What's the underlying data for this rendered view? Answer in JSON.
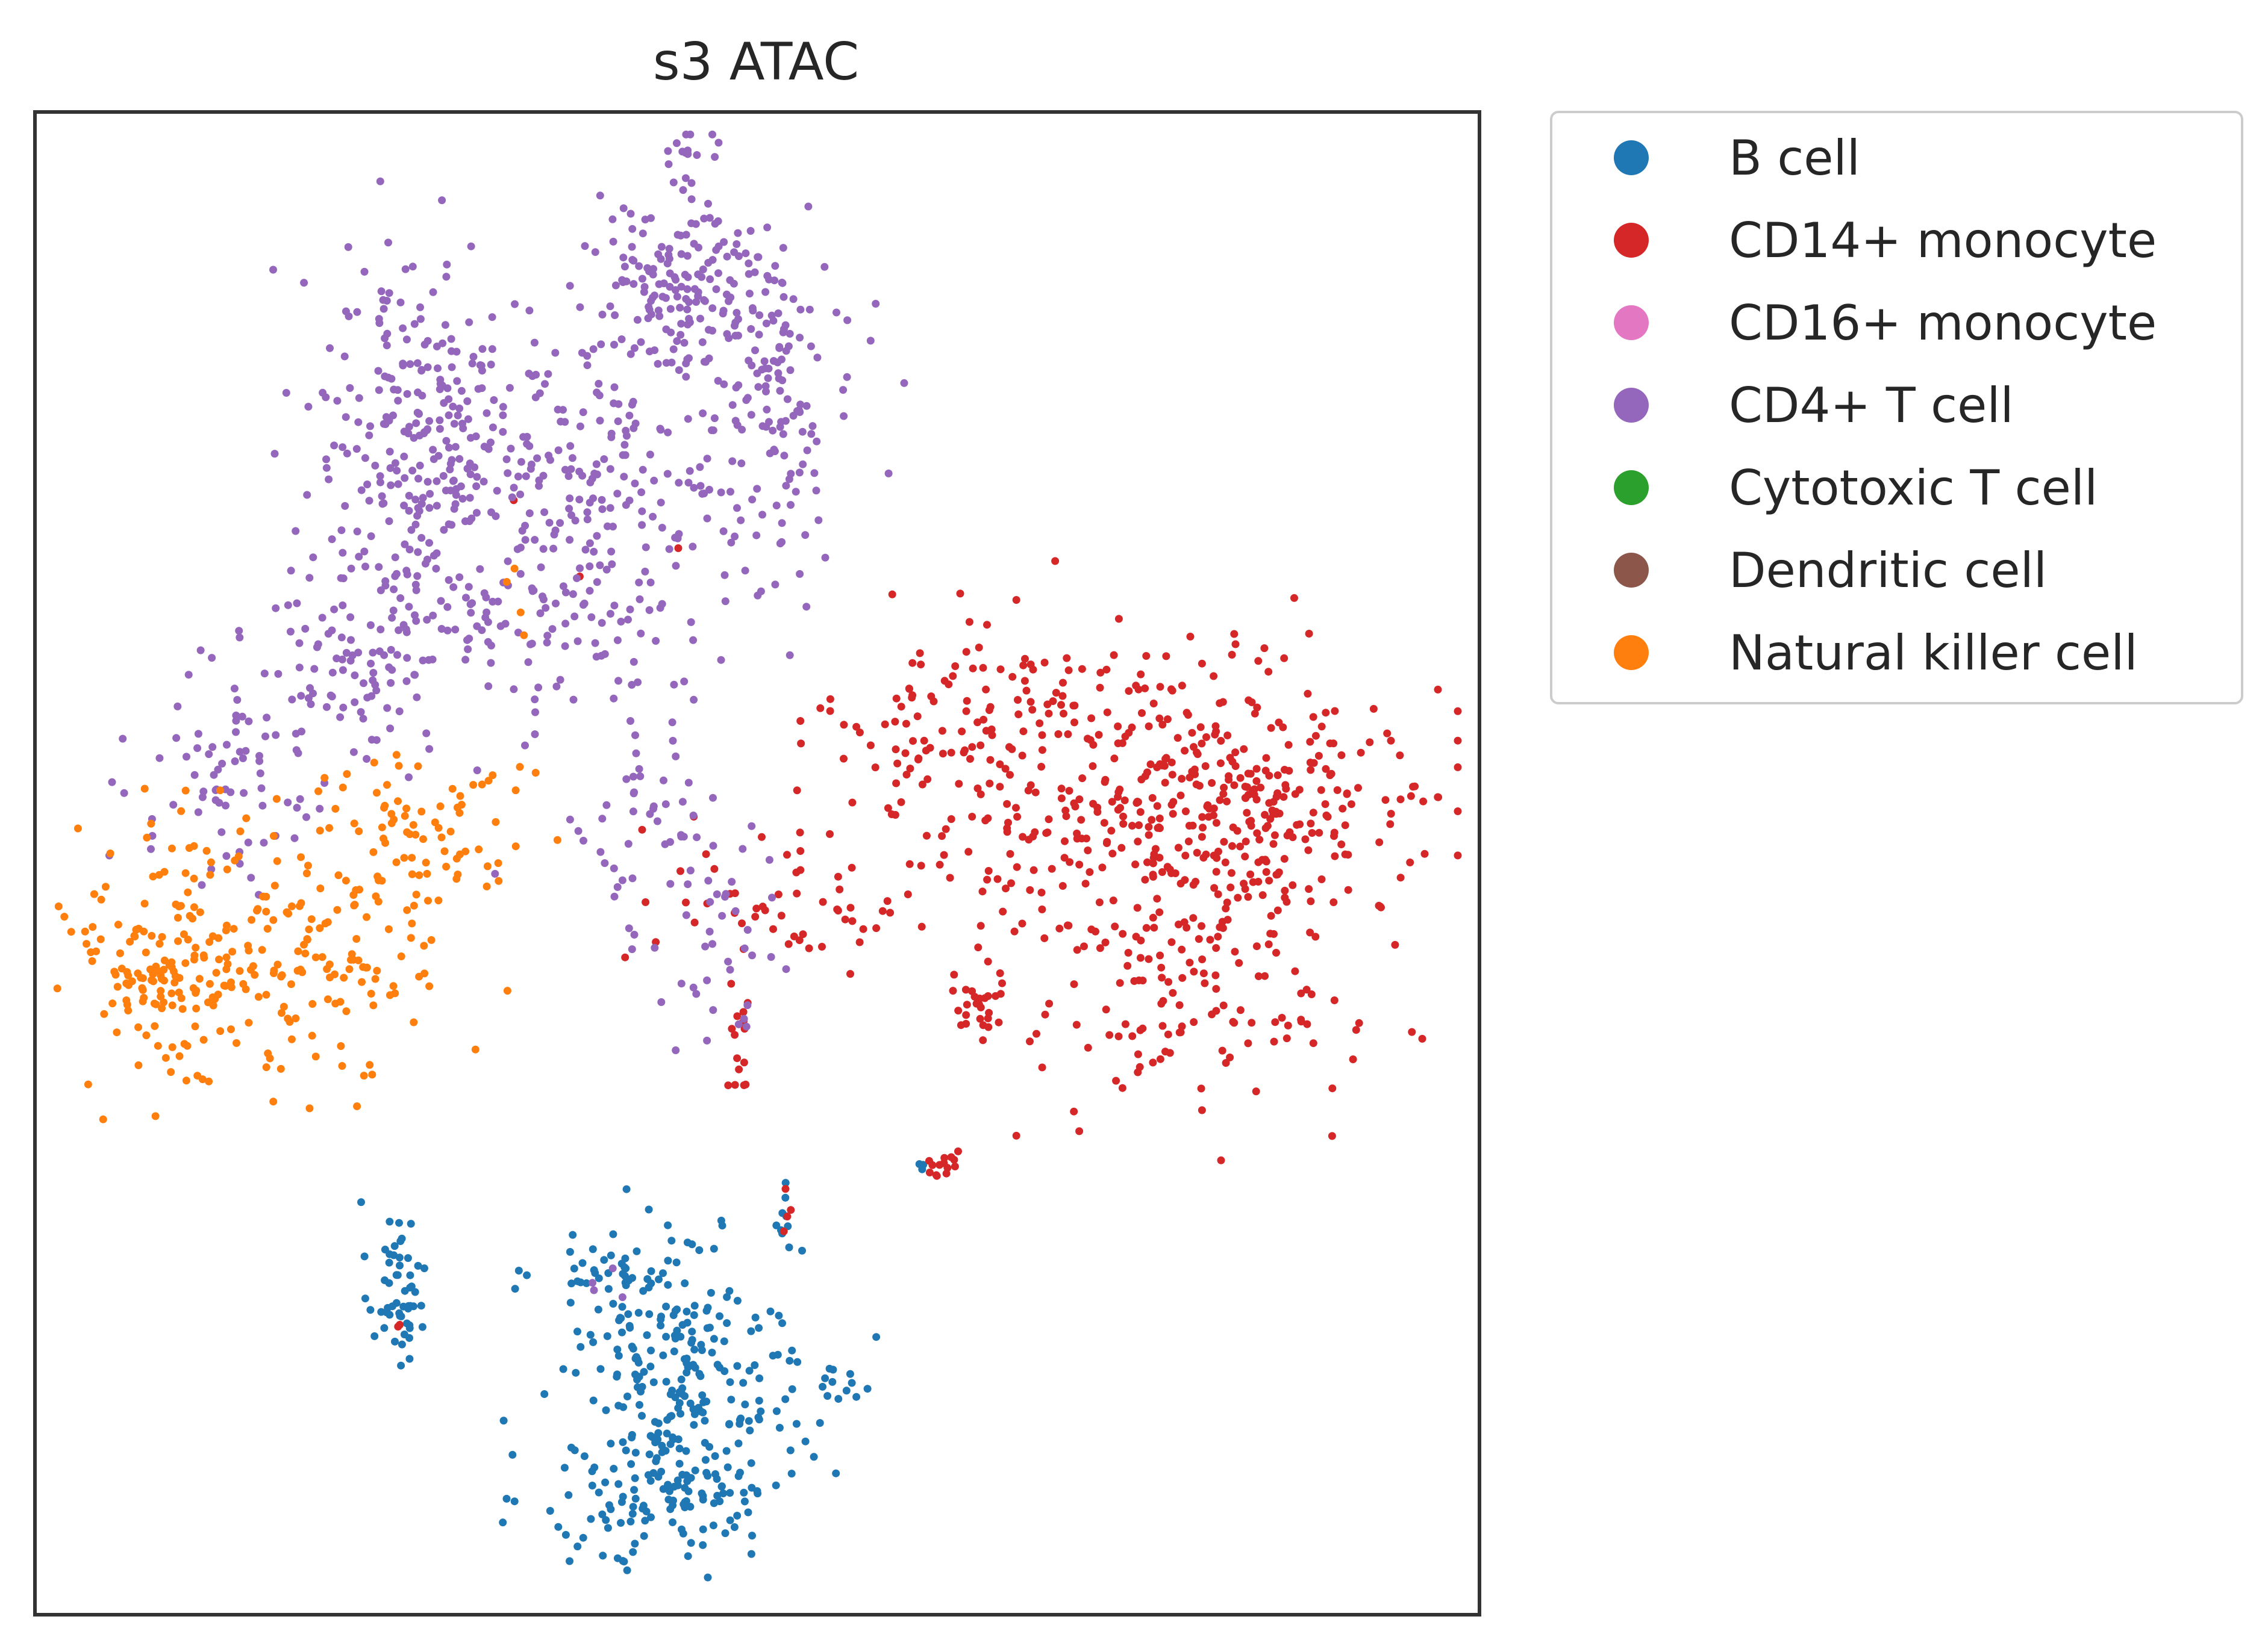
{
  "chart_data": {
    "type": "scatter",
    "title": "s3 ATAC",
    "xlabel": "",
    "ylabel": "",
    "xlim": [
      0,
      100
    ],
    "ylim": [
      0,
      100
    ],
    "grid": false,
    "axis_ticks": false,
    "legend_position": "outside-right-top",
    "series": [
      {
        "name": "B cell",
        "color": "#1f77b4",
        "clusters": [
          {
            "center": [
              25,
              22
            ],
            "spread": [
              1.0,
              2.8
            ],
            "n": 55
          },
          {
            "center": [
              41,
              22
            ],
            "spread": [
              3.2,
              2.5
            ],
            "n": 75
          },
          {
            "center": [
              46,
              16
            ],
            "spread": [
              3.8,
              3.2
            ],
            "n": 145
          },
          {
            "center": [
              44,
              8.5
            ],
            "spread": [
              4.5,
              2.8
            ],
            "n": 150
          },
          {
            "center": [
              55,
              15
            ],
            "spread": [
              1.5,
              1.0
            ],
            "n": 15
          },
          {
            "center": [
              52,
              26
            ],
            "spread": [
              1.0,
              1.5
            ],
            "n": 10
          },
          {
            "center": [
              61.5,
              30
            ],
            "spread": [
              0.3,
              0.2
            ],
            "n": 3
          }
        ]
      },
      {
        "name": "CD14+ monocyte",
        "color": "#d62728",
        "clusters": [
          {
            "center": [
              76,
              55
            ],
            "spread": [
              8.0,
              5.0
            ],
            "n": 330
          },
          {
            "center": [
              86,
              54
            ],
            "spread": [
              6.0,
              4.0
            ],
            "n": 160
          },
          {
            "center": [
              80,
              41
            ],
            "spread": [
              5.5,
              4.0
            ],
            "n": 130
          },
          {
            "center": [
              63,
              59
            ],
            "spread": [
              4.5,
              4.0
            ],
            "n": 70
          },
          {
            "center": [
              52,
              48
            ],
            "spread": [
              4.5,
              2.5
            ],
            "n": 55
          },
          {
            "center": [
              49,
              40
            ],
            "spread": [
              0.5,
              3.0
            ],
            "n": 18
          },
          {
            "center": [
              65.5,
              40.5
            ],
            "spread": [
              1.0,
              1.5
            ],
            "n": 28
          },
          {
            "center": [
              63,
              30
            ],
            "spread": [
              0.6,
              0.5
            ],
            "n": 14
          },
          {
            "center": [
              52,
              26
            ],
            "spread": [
              0.3,
              1.0
            ],
            "n": 4
          },
          {
            "center": [
              38,
              71
            ],
            "spread": [
              2.5,
              2.0
            ],
            "n": 3
          },
          {
            "center": [
              25,
              19.5
            ],
            "spread": [
              0.3,
              0.3
            ],
            "n": 2
          }
        ]
      },
      {
        "name": "CD16+ monocyte",
        "color": "#e377c2",
        "clusters": []
      },
      {
        "name": "CD4+ T cell",
        "color": "#9467bd",
        "clusters": [
          {
            "center": [
              45,
              88
            ],
            "spread": [
              3.5,
              3.0
            ],
            "n": 170
          },
          {
            "center": [
              51,
              80
            ],
            "spread": [
              3.0,
              5.0
            ],
            "n": 140
          },
          {
            "center": [
              26,
              80
            ],
            "spread": [
              3.5,
              6.0
            ],
            "n": 180
          },
          {
            "center": [
              35,
              72
            ],
            "spread": [
              6.5,
              7.0
            ],
            "n": 330
          },
          {
            "center": [
              22,
              64
            ],
            "spread": [
              4.0,
              3.5
            ],
            "n": 110
          },
          {
            "center": [
              14,
              55
            ],
            "spread": [
              3.5,
              3.5
            ],
            "n": 70
          },
          {
            "center": [
              44,
              52
            ],
            "spread": [
              3.0,
              3.5
            ],
            "n": 55
          },
          {
            "center": [
              48,
              44
            ],
            "spread": [
              2.0,
              3.0
            ],
            "n": 30
          },
          {
            "center": [
              45,
              97
            ],
            "spread": [
              1.0,
              1.0
            ],
            "n": 15
          },
          {
            "center": [
              39,
              21
            ],
            "spread": [
              1.0,
              1.0
            ],
            "n": 4
          }
        ]
      },
      {
        "name": "Cytotoxic T cell",
        "color": "#2ca02c",
        "clusters": []
      },
      {
        "name": "Dendritic cell",
        "color": "#8c564b",
        "clusters": []
      },
      {
        "name": "Natural killer cell",
        "color": "#ff7f0e",
        "clusters": [
          {
            "center": [
              10,
              44
            ],
            "spread": [
              4.0,
              4.5
            ],
            "n": 150
          },
          {
            "center": [
              20,
              45
            ],
            "spread": [
              5.0,
              5.0
            ],
            "n": 140
          },
          {
            "center": [
              27,
              53
            ],
            "spread": [
              3.5,
              3.0
            ],
            "n": 60
          },
          {
            "center": [
              8,
              42
            ],
            "spread": [
              1.5,
              1.0
            ],
            "n": 25
          },
          {
            "center": [
              31,
              68
            ],
            "spread": [
              2.5,
              4.0
            ],
            "n": 4
          }
        ]
      }
    ]
  }
}
